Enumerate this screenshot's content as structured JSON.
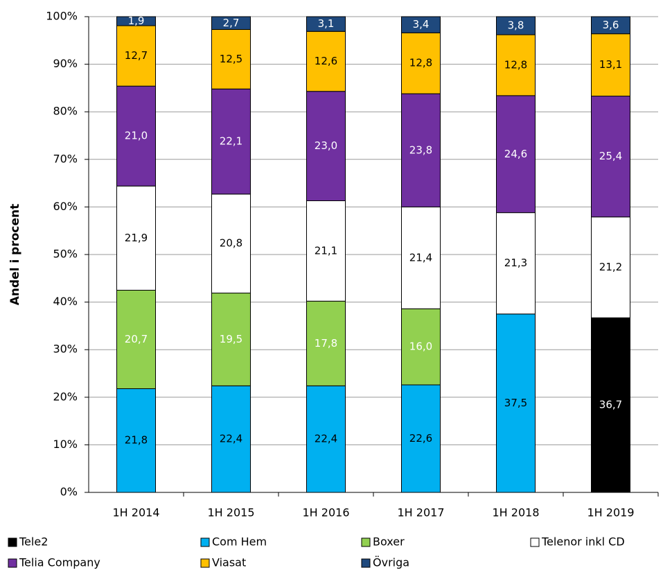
{
  "chart_data": {
    "type": "stacked_bar",
    "y_label": "Andel i procent",
    "categories": [
      "1H 2014",
      "1H 2015",
      "1H 2016",
      "1H 2017",
      "1H 2018",
      "1H 2019"
    ],
    "series": [
      {
        "name": "Tele2",
        "color": "#000000",
        "label_color": "#ffffff",
        "values": [
          null,
          null,
          null,
          null,
          null,
          36.7
        ],
        "value_labels": [
          null,
          null,
          null,
          null,
          null,
          "36,7"
        ]
      },
      {
        "name": "Com Hem",
        "color": "#00b0f0",
        "label_color": "#000000",
        "values": [
          21.8,
          22.4,
          22.4,
          22.6,
          37.5,
          null
        ],
        "value_labels": [
          "21,8",
          "22,4",
          "22,4",
          "22,6",
          "37,5",
          null
        ]
      },
      {
        "name": "Boxer",
        "color": "#92d050",
        "label_color": "#ffffff",
        "values": [
          20.7,
          19.5,
          17.8,
          16.0,
          null,
          null
        ],
        "value_labels": [
          "20,7",
          "19,5",
          "17,8",
          "16,0",
          null,
          null
        ]
      },
      {
        "name": "Telenor inkl CD",
        "color": "#ffffff",
        "label_color": "#000000",
        "values": [
          21.9,
          20.8,
          21.1,
          21.4,
          21.3,
          21.2
        ],
        "value_labels": [
          "21,9",
          "20,8",
          "21,1",
          "21,4",
          "21,3",
          "21,2"
        ]
      },
      {
        "name": "Telia Company",
        "color": "#7030a0",
        "label_color": "#ffffff",
        "values": [
          21.0,
          22.1,
          23.0,
          23.8,
          24.6,
          25.4
        ],
        "value_labels": [
          "21,0",
          "22,1",
          "23,0",
          "23,8",
          "24,6",
          "25,4"
        ]
      },
      {
        "name": "Viasat",
        "color": "#ffc000",
        "label_color": "#000000",
        "values": [
          12.7,
          12.5,
          12.6,
          12.8,
          12.8,
          13.1
        ],
        "value_labels": [
          "12,7",
          "12,5",
          "12,6",
          "12,8",
          "12,8",
          "13,1"
        ]
      },
      {
        "name": "Övriga",
        "color": "#1f497d",
        "label_color": "#ffffff",
        "values": [
          1.9,
          2.7,
          3.1,
          3.4,
          3.8,
          3.6
        ],
        "value_labels": [
          "1,9",
          "2,7",
          "3,1",
          "3,4",
          "3,8",
          "3,6"
        ]
      }
    ],
    "ylim": [
      0,
      100
    ],
    "yticks": [
      {
        "value": 0,
        "label": "0%"
      },
      {
        "value": 10,
        "label": "10%"
      },
      {
        "value": 20,
        "label": "20%"
      },
      {
        "value": 30,
        "label": "30%"
      },
      {
        "value": 40,
        "label": "40%"
      },
      {
        "value": 50,
        "label": "50%"
      },
      {
        "value": 60,
        "label": "60%"
      },
      {
        "value": 70,
        "label": "70%"
      },
      {
        "value": 80,
        "label": "80%"
      },
      {
        "value": 90,
        "label": "90%"
      },
      {
        "value": 100,
        "label": "100%"
      }
    ],
    "grid": true
  }
}
